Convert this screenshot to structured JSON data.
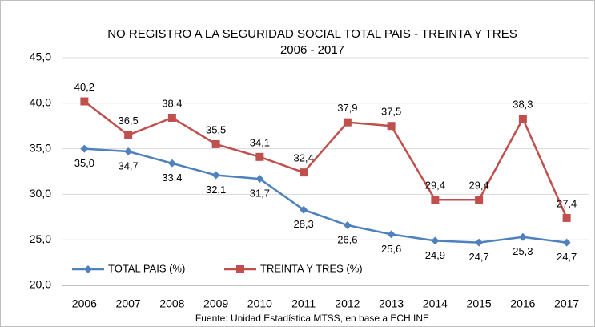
{
  "chart_data": {
    "type": "line",
    "title": "NO REGISTRO A LA SEGURIDAD SOCIAL TOTAL PAIS  - TREINTA Y TRES",
    "subtitle": "2006 - 2017",
    "note": "Fuente: Unidad Estadística MTSS, en base a ECH INE",
    "categories": [
      "2006",
      "2007",
      "2008",
      "2009",
      "2010",
      "2011",
      "2012",
      "2013",
      "2014",
      "2015",
      "2016",
      "2017"
    ],
    "series": [
      {
        "name": "TOTAL PAIS (%)",
        "color": "#4f81bd",
        "marker": "diamond",
        "values": [
          35.0,
          34.7,
          33.4,
          32.1,
          31.7,
          28.3,
          26.6,
          25.6,
          24.9,
          24.7,
          25.3,
          24.7
        ],
        "value_labels": [
          "35,0",
          "34,7",
          "33,4",
          "32,1",
          "31,7",
          "28,3",
          "26,6",
          "25,6",
          "24,9",
          "24,7",
          "25,3",
          "24,7"
        ]
      },
      {
        "name": "TREINTA Y TRES  (%)",
        "color": "#c0504d",
        "marker": "square",
        "values": [
          40.2,
          36.5,
          38.4,
          35.5,
          34.1,
          32.4,
          37.9,
          37.5,
          29.4,
          29.4,
          38.3,
          27.4
        ],
        "value_labels": [
          "40,2",
          "36,5",
          "38,4",
          "35,5",
          "34,1",
          "32,4",
          "37,9",
          "37,5",
          "29,4",
          "29,4",
          "38,3",
          "27,4"
        ]
      }
    ],
    "ylim": [
      20,
      45
    ],
    "yticks": [
      {
        "value": 20,
        "label": "20,0"
      },
      {
        "value": 25,
        "label": "25,0"
      },
      {
        "value": 30,
        "label": "30,0"
      },
      {
        "value": 35,
        "label": "35,0"
      },
      {
        "value": 40,
        "label": "40,0"
      },
      {
        "value": 45,
        "label": "45,0"
      }
    ],
    "grid": true,
    "legend": "bottom-left"
  }
}
